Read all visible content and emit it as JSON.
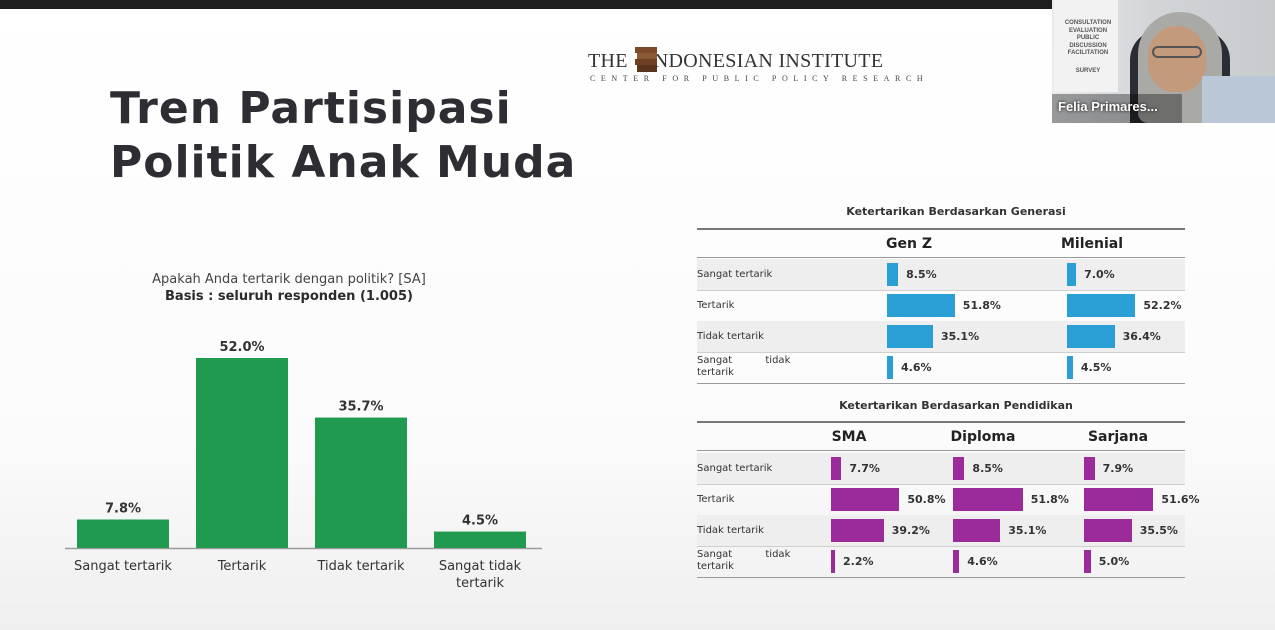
{
  "slide": {
    "title_line1": "Tren Partisipasi",
    "title_line2": "Politik Anak Muda"
  },
  "logo": {
    "text_left": "THE",
    "text_right": "NDONESIAN INSTITUTE",
    "subtitle": "CENTER FOR PUBLIC POLICY RESEARCH"
  },
  "video": {
    "participant_name": "Felia Primares...",
    "banner_lines": [
      "CONSULTATION",
      "EVALUATION",
      "PUBLIC",
      "DISCUSSION",
      "FACILITATION",
      "SURVEY"
    ]
  },
  "chart_data": [
    {
      "type": "bar",
      "title": "Apakah Anda tertarik dengan politik? [SA]",
      "subtitle": "Basis : seluruh responden (1.005)",
      "categories": [
        "Sangat tertarik",
        "Tertarik",
        "Tidak tertarik",
        "Sangat tidak tertarik"
      ],
      "values": [
        7.8,
        52.0,
        35.7,
        4.5
      ],
      "value_labels": [
        "7.8%",
        "52.0%",
        "35.7%",
        "4.5%"
      ],
      "color": "#1f9a4f",
      "ylim": [
        0,
        55
      ],
      "grid": false
    },
    {
      "type": "table",
      "title": "Ketertarikan Berdasarkan Generasi",
      "columns": [
        "Gen Z",
        "Milenial"
      ],
      "rows": [
        "Sangat tertarik",
        "Tertarik",
        "Tidak tertarik",
        "Sangat tidak tertarik"
      ],
      "values": [
        [
          8.5,
          7.0
        ],
        [
          51.8,
          52.2
        ],
        [
          35.1,
          36.4
        ],
        [
          4.6,
          4.5
        ]
      ],
      "value_labels": [
        [
          "8.5%",
          "7.0%"
        ],
        [
          "51.8%",
          "52.2%"
        ],
        [
          "35.1%",
          "36.4%"
        ],
        [
          "4.6%",
          "4.5%"
        ]
      ],
      "color": "#2a9fd6"
    },
    {
      "type": "table",
      "title": "Ketertarikan Berdasarkan Pendidikan",
      "columns": [
        "SMA",
        "Diploma",
        "Sarjana"
      ],
      "rows": [
        "Sangat tertarik",
        "Tertarik",
        "Tidak tertarik",
        "Sangat tidak tertarik"
      ],
      "values": [
        [
          7.7,
          8.5,
          7.9
        ],
        [
          50.8,
          51.8,
          51.6
        ],
        [
          39.2,
          35.1,
          35.5
        ],
        [
          2.2,
          4.6,
          5.0
        ]
      ],
      "value_labels": [
        [
          "7.7%",
          "8.5%",
          "7.9%"
        ],
        [
          "50.8%",
          "51.8%",
          "51.6%"
        ],
        [
          "39.2%",
          "35.1%",
          "35.5%"
        ],
        [
          "2.2%",
          "4.6%",
          "5.0%"
        ]
      ],
      "color": "#9b2a9a"
    }
  ]
}
